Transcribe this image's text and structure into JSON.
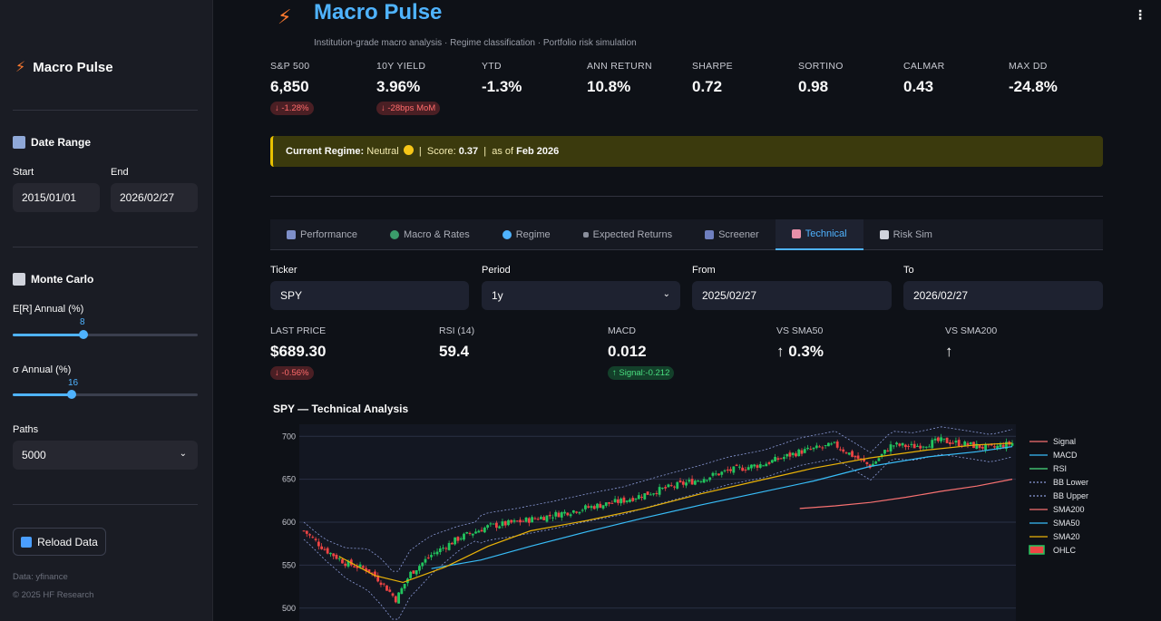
{
  "sidebar": {
    "brand": "Macro Pulse",
    "date_range": {
      "heading": "Date Range",
      "start_label": "Start",
      "start_value": "2015/01/01",
      "end_label": "End",
      "end_value": "2026/02/27"
    },
    "monte_carlo": {
      "heading": "Monte Carlo",
      "er_label": "E[R] Annual (%)",
      "er_value": "8",
      "er_fraction": 0.38,
      "sigma_label": "σ Annual (%)",
      "sigma_value": "16",
      "sigma_fraction": 0.32,
      "paths_label": "Paths",
      "paths_value": "5000"
    },
    "reload_label": "Reload Data",
    "footer_source": "Data: yfinance",
    "footer_copy": "© 2025 HF Research"
  },
  "header": {
    "title": "Macro Pulse",
    "subtitle": "Institution-grade macro analysis · Regime classification · Portfolio risk simulation"
  },
  "metrics": [
    {
      "label": "S&P 500",
      "value": "6,850",
      "delta": "↓ -1.28%"
    },
    {
      "label": "10Y YIELD",
      "value": "3.96%",
      "delta": "↓ -28bps MoM"
    },
    {
      "label": "YTD",
      "value": "-1.3%",
      "delta": ""
    },
    {
      "label": "ANN RETURN",
      "value": "10.8%",
      "delta": ""
    },
    {
      "label": "SHARPE",
      "value": "0.72",
      "delta": ""
    },
    {
      "label": "SORTINO",
      "value": "0.98",
      "delta": ""
    },
    {
      "label": "CALMAR",
      "value": "0.43",
      "delta": ""
    },
    {
      "label": "MAX DD",
      "value": "-24.8%",
      "delta": ""
    }
  ],
  "regime": {
    "label": "Current Regime:",
    "value": "Neutral",
    "score_label": "Score:",
    "score": "0.37",
    "asof_label": "as of",
    "asof": "Feb 2026"
  },
  "tabs": [
    {
      "label": "Performance",
      "active": false
    },
    {
      "label": "Macro & Rates",
      "active": false
    },
    {
      "label": "Regime",
      "active": false
    },
    {
      "label": "Expected Returns",
      "active": false
    },
    {
      "label": "Screener",
      "active": false
    },
    {
      "label": "Technical",
      "active": true
    },
    {
      "label": "Risk Sim",
      "active": false
    }
  ],
  "technical": {
    "ticker_label": "Ticker",
    "ticker_value": "SPY",
    "period_label": "Period",
    "period_value": "1y",
    "from_label": "From",
    "from_value": "2025/02/27",
    "to_label": "To",
    "to_value": "2026/02/27",
    "last_price_label": "LAST PRICE",
    "last_price_value": "$689.30",
    "last_price_delta": "↓ -0.56%",
    "rsi_label": "RSI (14)",
    "rsi_value": "59.4",
    "macd_label": "MACD",
    "macd_value": "0.012",
    "macd_delta": "↑ Signal:-0.212",
    "sma50_label": "VS SMA50",
    "sma50_value": "↑ 0.3%",
    "sma200_label": "VS SMA200",
    "sma200_value": "↑"
  },
  "chart_data": {
    "type": "line",
    "title": "SPY — Technical Analysis",
    "yticks": [
      700,
      650,
      600,
      550,
      500
    ],
    "ylim": [
      485,
      714
    ],
    "legend": [
      "Signal",
      "MACD",
      "RSI",
      "BB Lower",
      "BB Upper",
      "SMA200",
      "SMA50",
      "SMA20",
      "OHLC"
    ],
    "legend_colors": {
      "Signal": "#f87171",
      "MACD": "#38bdf8",
      "RSI": "#4ade80",
      "BB Lower": "#8b9bd8",
      "BB Upper": "#8b9bd8",
      "SMA200": "#f87171",
      "SMA50": "#38bdf8",
      "SMA20": "#eab308",
      "OHLC": "#22c55e"
    },
    "series": [
      {
        "name": "SMA200",
        "x": [
          0.7,
          0.75,
          0.8,
          0.85,
          0.9,
          0.95,
          1.0
        ],
        "values": [
          616,
          619,
          623,
          629,
          636,
          642,
          650
        ]
      },
      {
        "name": "SMA50",
        "x": [
          0.18,
          0.25,
          0.32,
          0.4,
          0.48,
          0.56,
          0.64,
          0.72,
          0.8,
          0.88,
          0.95,
          1.0
        ],
        "values": [
          546,
          556,
          572,
          589,
          605,
          620,
          634,
          648,
          665,
          676,
          682,
          688
        ]
      },
      {
        "name": "SMA20",
        "x": [
          0.05,
          0.1,
          0.14,
          0.2,
          0.26,
          0.32,
          0.4,
          0.48,
          0.56,
          0.64,
          0.72,
          0.8,
          0.88,
          0.95,
          1.0
        ],
        "values": [
          560,
          538,
          530,
          548,
          572,
          590,
          602,
          616,
          633,
          648,
          663,
          675,
          684,
          690,
          692
        ]
      },
      {
        "name": "Close",
        "x": [
          0.0,
          0.03,
          0.06,
          0.09,
          0.11,
          0.13,
          0.15,
          0.18,
          0.22,
          0.26,
          0.3,
          0.35,
          0.4,
          0.45,
          0.5,
          0.55,
          0.6,
          0.65,
          0.7,
          0.75,
          0.8,
          0.83,
          0.86,
          0.9,
          0.94,
          0.97,
          1.0
        ],
        "values": [
          590,
          568,
          552,
          545,
          530,
          510,
          540,
          562,
          582,
          595,
          600,
          608,
          617,
          625,
          637,
          648,
          660,
          668,
          682,
          690,
          665,
          690,
          688,
          695,
          690,
          686,
          692
        ]
      }
    ]
  }
}
